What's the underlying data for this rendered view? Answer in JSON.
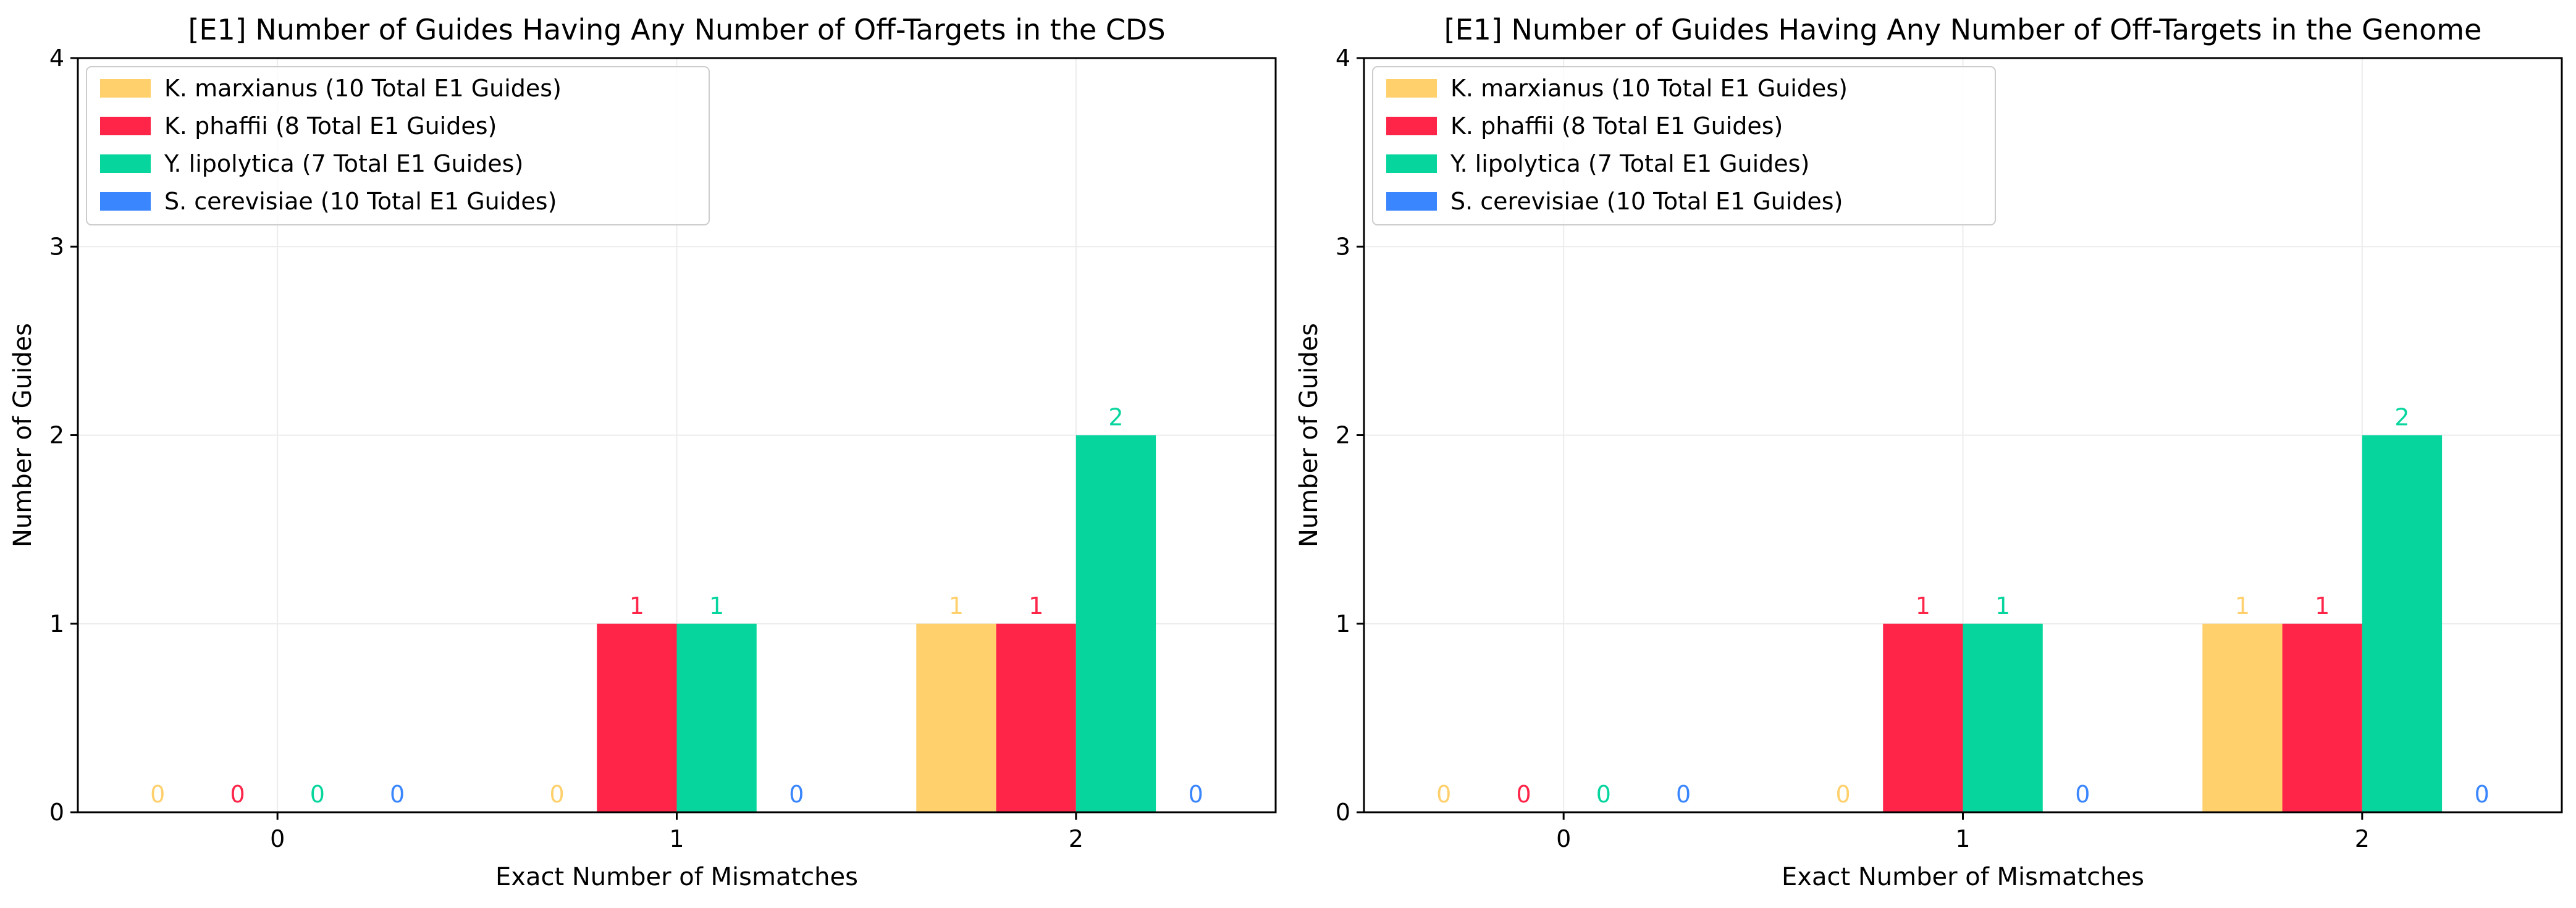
{
  "chart_data": [
    {
      "type": "bar",
      "title": "[E1] Number of Guides Having Any Number of Off-Targets in the CDS",
      "xlabel": "Exact Number of Mismatches",
      "ylabel": "Number of Guides",
      "categories": [
        "0",
        "1",
        "2"
      ],
      "ylim": [
        0,
        4
      ],
      "yticks": [
        "0",
        "1",
        "2",
        "3",
        "4"
      ],
      "grid": true,
      "legend_position": "top-left",
      "series": [
        {
          "name": "K. marxianus (10 Total E1 Guides)",
          "color": "#ffd06b",
          "values": [
            0,
            0,
            1
          ],
          "labels": [
            "0",
            "0",
            "1"
          ]
        },
        {
          "name": "K. phaffii (8 Total E1 Guides)",
          "color": "#ff2549",
          "values": [
            0,
            1,
            1
          ],
          "labels": [
            "0",
            "1",
            "1"
          ]
        },
        {
          "name": "Y. lipolytica (7 Total E1 Guides)",
          "color": "#06d69e",
          "values": [
            0,
            1,
            2
          ],
          "labels": [
            "0",
            "1",
            "2"
          ]
        },
        {
          "name": "S. cerevisiae (10 Total E1 Guides)",
          "color": "#3a86ff",
          "values": [
            0,
            0,
            0
          ],
          "labels": [
            "0",
            "0",
            "0"
          ]
        }
      ]
    },
    {
      "type": "bar",
      "title": "[E1] Number of Guides Having Any Number of Off-Targets in the Genome",
      "xlabel": "Exact Number of Mismatches",
      "ylabel": "Number of Guides",
      "categories": [
        "0",
        "1",
        "2"
      ],
      "ylim": [
        0,
        4
      ],
      "yticks": [
        "0",
        "1",
        "2",
        "3",
        "4"
      ],
      "grid": true,
      "legend_position": "top-left",
      "series": [
        {
          "name": "K. marxianus (10 Total E1 Guides)",
          "color": "#ffd06b",
          "values": [
            0,
            0,
            1
          ],
          "labels": [
            "0",
            "0",
            "1"
          ]
        },
        {
          "name": "K. phaffii (8 Total E1 Guides)",
          "color": "#ff2549",
          "values": [
            0,
            1,
            1
          ],
          "labels": [
            "0",
            "1",
            "1"
          ]
        },
        {
          "name": "Y. lipolytica (7 Total E1 Guides)",
          "color": "#06d69e",
          "values": [
            0,
            1,
            2
          ],
          "labels": [
            "0",
            "1",
            "2"
          ]
        },
        {
          "name": "S. cerevisiae (10 Total E1 Guides)",
          "color": "#3a86ff",
          "values": [
            0,
            0,
            0
          ],
          "labels": [
            "0",
            "0",
            "0"
          ]
        }
      ]
    }
  ]
}
